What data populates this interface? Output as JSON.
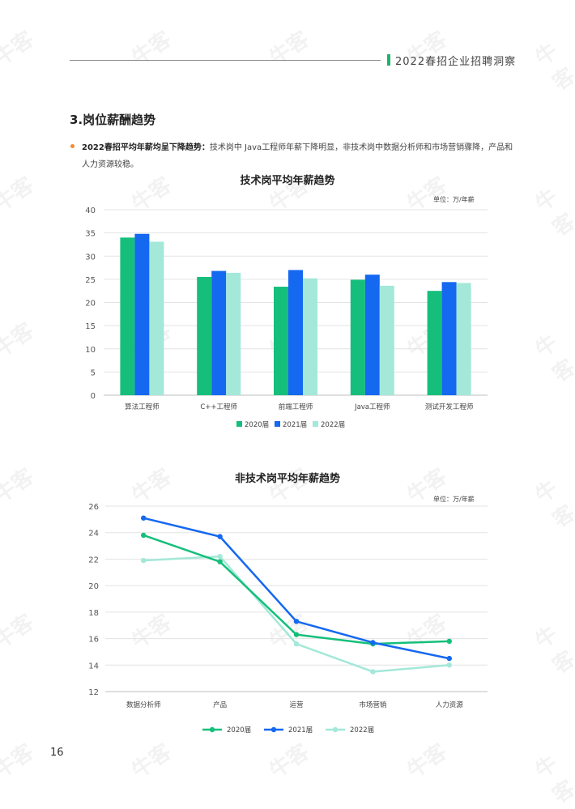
{
  "header": {
    "title": "2022春招企业招聘洞察"
  },
  "section": {
    "title": "3.岗位薪酬趋势",
    "bullet_bold": "2022春招平均年薪均呈下降趋势：",
    "bullet_text": "技术岗中 Java工程师年薪下降明显，非技术岗中数据分析师和市场营销骤降，产品和人力资源较稳。"
  },
  "colors": {
    "s2020": "#15bf7b",
    "s2021": "#1568f0",
    "s2022": "#a3e8d8",
    "accent": "#1cb56c",
    "bullet": "#f28a2e"
  },
  "watermark": "牛客",
  "page_number": "16",
  "chart_data": [
    {
      "type": "bar",
      "title": "技术岗平均年薪趋势",
      "unit": "单位：万/年薪",
      "categories": [
        "算法工程师",
        "C++工程师",
        "前端工程师",
        "Java工程师",
        "测试开发工程师"
      ],
      "series": [
        {
          "name": "2020届",
          "values": [
            34.0,
            25.5,
            23.4,
            24.9,
            22.5
          ]
        },
        {
          "name": "2021届",
          "values": [
            34.8,
            26.8,
            27.0,
            26.0,
            24.4
          ]
        },
        {
          "name": "2022届",
          "values": [
            33.1,
            26.4,
            25.2,
            23.6,
            24.2
          ]
        }
      ],
      "yticks": [
        0,
        5,
        10,
        15,
        20,
        25,
        30,
        35,
        40
      ],
      "ylim": [
        0,
        40
      ],
      "grid": true,
      "legend": "bottom"
    },
    {
      "type": "line",
      "title": "非技术岗平均年薪趋势",
      "unit": "单位：万/年薪",
      "categories": [
        "数据分析师",
        "产品",
        "运营",
        "市场营销",
        "人力资源"
      ],
      "series": [
        {
          "name": "2020届",
          "values": [
            23.8,
            21.8,
            16.3,
            15.6,
            15.8
          ]
        },
        {
          "name": "2021届",
          "values": [
            25.1,
            23.7,
            17.3,
            15.7,
            14.5
          ]
        },
        {
          "name": "2022届",
          "values": [
            21.9,
            22.2,
            15.6,
            13.5,
            14.0
          ]
        }
      ],
      "yticks": [
        12,
        14,
        16,
        18,
        20,
        22,
        24,
        26
      ],
      "ylim": [
        12,
        26
      ],
      "grid": true,
      "legend": "bottom"
    }
  ]
}
